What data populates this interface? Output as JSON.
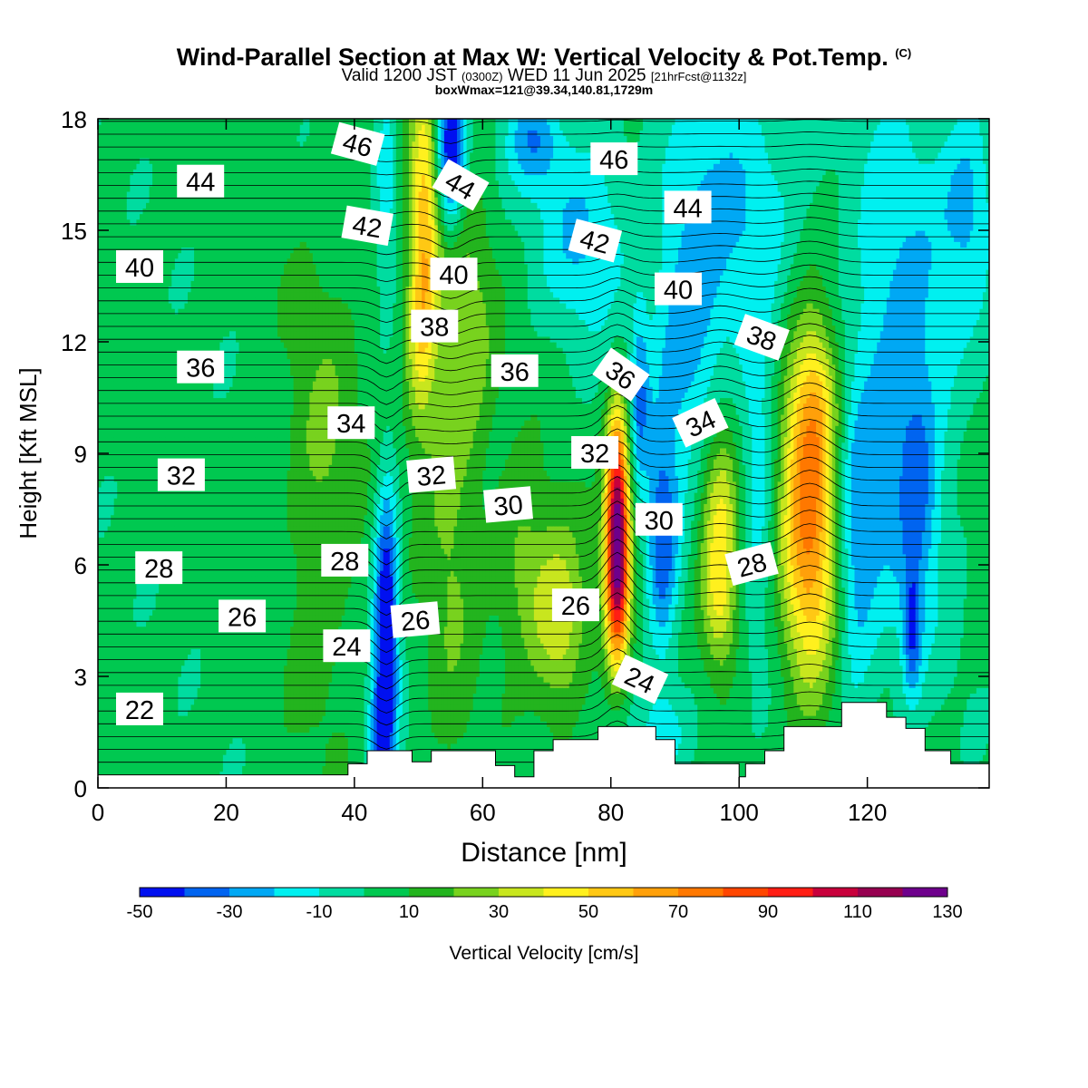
{
  "title": "Wind-Parallel Section at Max W: Vertical Velocity & Pot.Temp.",
  "title_tag": "(C)",
  "subtitle": {
    "main_a": "Valid 1200 JST",
    "zulu": "(0300Z)",
    "main_b": "WED 11 Jun 2025",
    "fcst": "[21hrFcst@1132z]"
  },
  "box_info": "boxWmax=121@39.34,140.81,1729m",
  "chart_data": {
    "type": "heatmap",
    "xlabel": "Distance [nm]",
    "ylabel": "Height [Kft MSL]",
    "xlim": [
      0,
      139
    ],
    "ylim": [
      0,
      18
    ],
    "x_ticks": [
      0,
      20,
      40,
      60,
      80,
      100,
      120
    ],
    "y_ticks": [
      0,
      3,
      6,
      9,
      12,
      15,
      18
    ],
    "colorbar": {
      "label": "Vertical Velocity [cm/s]",
      "levels": [
        -50,
        -40,
        -30,
        -20,
        -10,
        0,
        10,
        20,
        30,
        40,
        50,
        60,
        70,
        80,
        90,
        100,
        110,
        120,
        130
      ],
      "tick_labels": [
        "-50",
        "-30",
        "-10",
        "10",
        "30",
        "50",
        "70",
        "90",
        "110",
        "130"
      ],
      "colors": [
        "#0010f0",
        "#0064f0",
        "#00a8f4",
        "#00f0f0",
        "#00dca0",
        "#00c850",
        "#23b41e",
        "#78d21e",
        "#c8e61e",
        "#fff01e",
        "#ffc814",
        "#ffa00a",
        "#ff7800",
        "#ff4600",
        "#ff1e14",
        "#c8003c",
        "#960050",
        "#6e008c"
      ]
    },
    "terrain_kft": [
      [
        0,
        0.35
      ],
      [
        39,
        0.35
      ],
      [
        39,
        0.65
      ],
      [
        42,
        0.65
      ],
      [
        42,
        1.0
      ],
      [
        49,
        1.0
      ],
      [
        49,
        0.7
      ],
      [
        52,
        0.7
      ],
      [
        52,
        1.0
      ],
      [
        62,
        1.0
      ],
      [
        62,
        0.6
      ],
      [
        65,
        0.6
      ],
      [
        65,
        0.3
      ],
      [
        68,
        0.3
      ],
      [
        68,
        1.0
      ],
      [
        71,
        1.0
      ],
      [
        71,
        1.3
      ],
      [
        78,
        1.3
      ],
      [
        78,
        1.65
      ],
      [
        87,
        1.65
      ],
      [
        87,
        1.3
      ],
      [
        90,
        1.3
      ],
      [
        90,
        0.65
      ],
      [
        100,
        0.65
      ],
      [
        100,
        0.3
      ],
      [
        101,
        0.3
      ],
      [
        101,
        0.65
      ],
      [
        104,
        0.65
      ],
      [
        104,
        1.0
      ],
      [
        107,
        1.0
      ],
      [
        107,
        1.65
      ],
      [
        116,
        1.65
      ],
      [
        116,
        2.3
      ],
      [
        123,
        2.3
      ],
      [
        123,
        1.9
      ],
      [
        126,
        1.9
      ],
      [
        126,
        1.6
      ],
      [
        129,
        1.6
      ],
      [
        129,
        1.0
      ],
      [
        133,
        1.0
      ],
      [
        133,
        0.65
      ],
      [
        139,
        0.65
      ]
    ],
    "updrafts": [
      {
        "x": 81,
        "z": 6.2,
        "peak": 121
      },
      {
        "x": 111,
        "z": 7.5,
        "peak": 75
      },
      {
        "x": 97,
        "z": 7.2,
        "peak": 40
      },
      {
        "x": 72,
        "z": 4.5,
        "peak": 38
      },
      {
        "x": 51,
        "z": 14,
        "peak": 45
      }
    ],
    "downdrafts": [
      {
        "x": 45,
        "z": 3.5,
        "peak": -50
      },
      {
        "x": 55,
        "z": 17,
        "peak": -45
      },
      {
        "x": 88,
        "z": 6.5,
        "peak": -30
      },
      {
        "x": 127,
        "z": 4,
        "peak": -30
      }
    ],
    "theta_labels": [
      {
        "text": "22",
        "x": 6.5,
        "z": 2.1
      },
      {
        "text": "24",
        "x": 38.8,
        "z": 3.8,
        "rot": 0
      },
      {
        "text": "24",
        "x": 84.5,
        "z": 2.9,
        "rot": 25
      },
      {
        "text": "26",
        "x": 22.5,
        "z": 4.6
      },
      {
        "text": "26",
        "x": 49.5,
        "z": 4.5,
        "rot": -5
      },
      {
        "text": "26",
        "x": 74.5,
        "z": 4.9
      },
      {
        "text": "28",
        "x": 9.5,
        "z": 5.9
      },
      {
        "text": "28",
        "x": 38.5,
        "z": 6.1
      },
      {
        "text": "28",
        "x": 102,
        "z": 6.0,
        "rot": -15
      },
      {
        "text": "30",
        "x": 64,
        "z": 7.6,
        "rot": -5
      },
      {
        "text": "30",
        "x": 87.5,
        "z": 7.2
      },
      {
        "text": "32",
        "x": 13,
        "z": 8.4
      },
      {
        "text": "32",
        "x": 52,
        "z": 8.4,
        "rot": -5
      },
      {
        "text": "32",
        "x": 77.5,
        "z": 9.0
      },
      {
        "text": "34",
        "x": 39.5,
        "z": 9.8
      },
      {
        "text": "34",
        "x": 94,
        "z": 9.8,
        "rot": -25
      },
      {
        "text": "36",
        "x": 16,
        "z": 11.3
      },
      {
        "text": "36",
        "x": 65,
        "z": 11.2
      },
      {
        "text": "36",
        "x": 81.5,
        "z": 11.1,
        "rot": 35
      },
      {
        "text": "38",
        "x": 52.5,
        "z": 12.4
      },
      {
        "text": "38",
        "x": 103.5,
        "z": 12.1,
        "rot": 20
      },
      {
        "text": "40",
        "x": 6.5,
        "z": 14.0
      },
      {
        "text": "40",
        "x": 55.5,
        "z": 13.8
      },
      {
        "text": "40",
        "x": 90.5,
        "z": 13.4
      },
      {
        "text": "42",
        "x": 42,
        "z": 15.1,
        "rot": 10
      },
      {
        "text": "42",
        "x": 77.5,
        "z": 14.7,
        "rot": 15
      },
      {
        "text": "44",
        "x": 16,
        "z": 16.3
      },
      {
        "text": "44",
        "x": 56.5,
        "z": 16.2,
        "rot": 30
      },
      {
        "text": "44",
        "x": 92,
        "z": 15.6
      },
      {
        "text": "46",
        "x": 40.5,
        "z": 17.3,
        "rot": 15
      },
      {
        "text": "46",
        "x": 80.5,
        "z": 16.9
      }
    ]
  }
}
